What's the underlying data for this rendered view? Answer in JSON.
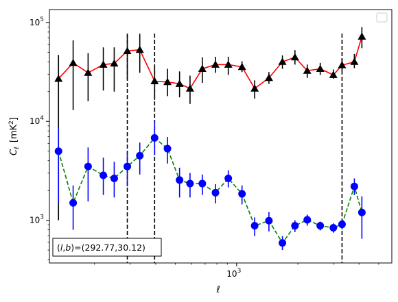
{
  "chart_data": {
    "type": "scatter",
    "title": "",
    "xlabel": "ℓ",
    "ylabel_main": "C",
    "ylabel_sub": "ℓ",
    "ylabel_unit_open": "[mK",
    "ylabel_unit_sup": "2",
    "ylabel_unit_close": "]",
    "xscale": "log",
    "yscale": "log",
    "xlim": [
      120,
      5800
    ],
    "ylim": [
      370,
      135000
    ],
    "x_ticks": [
      {
        "value": 1000,
        "base": "10",
        "exp": "3"
      }
    ],
    "y_ticks": [
      {
        "value": 1000,
        "base": "10",
        "exp": "3"
      },
      {
        "value": 10000,
        "base": "10",
        "exp": "4"
      },
      {
        "value": 100000,
        "base": "10",
        "exp": "5"
      }
    ],
    "legend": "top-right (empty)",
    "grid": false,
    "annotation": {
      "prefix": "(",
      "l": "l",
      "comma": ",",
      "b": "b",
      "suffix": ")=(292.77,30.12)"
    },
    "vlines": [
      290,
      395,
      3300
    ],
    "series": [
      {
        "color": "#ff0000",
        "line_style": "solid",
        "marker": "triangle",
        "marker_color": "#000000",
        "error_color": "#000000",
        "x": [
          133,
          157,
          186,
          221,
          250,
          290,
          334,
          395,
          457,
          524,
          590,
          678,
          787,
          910,
          1063,
          1227,
          1442,
          1680,
          1936,
          2225,
          2578,
          2991,
          3300,
          3794,
          4132
        ],
        "y": [
          27000,
          39000,
          31000,
          37500,
          38500,
          51500,
          53000,
          25500,
          25000,
          24000,
          21500,
          34000,
          37500,
          37500,
          35500,
          21500,
          27500,
          40000,
          44500,
          32500,
          34000,
          29500,
          37000,
          40000,
          72000
        ],
        "y_low": [
          1000,
          13000,
          16000,
          20500,
          20000,
          27000,
          31000,
          16500,
          18000,
          17500,
          15000,
          24500,
          31000,
          29500,
          31500,
          17000,
          24000,
          34000,
          37500,
          27500,
          29500,
          27000,
          32500,
          34500,
          55000
        ],
        "y_high": [
          47000,
          66000,
          49000,
          56000,
          56000,
          75000,
          77000,
          35000,
          34000,
          32000,
          29000,
          44500,
          45000,
          45000,
          40500,
          26000,
          31500,
          46500,
          52500,
          37500,
          39000,
          33500,
          43500,
          48000,
          90000
        ]
      },
      {
        "color": "#008000",
        "line_style": "dashed",
        "marker": "circle",
        "marker_color": "#0000ff",
        "error_color": "#0000ff",
        "x": [
          133,
          157,
          186,
          221,
          250,
          290,
          334,
          395,
          457,
          524,
          590,
          678,
          787,
          910,
          1063,
          1227,
          1442,
          1680,
          1936,
          2225,
          2578,
          2991,
          3300,
          3794,
          4132
        ],
        "y": [
          5000,
          1500,
          3500,
          2850,
          2650,
          3500,
          4500,
          6800,
          5300,
          2550,
          2350,
          2350,
          1900,
          2650,
          1850,
          880,
          990,
          590,
          880,
          1010,
          880,
          840,
          910,
          2200,
          1200
        ],
        "y_low": [
          1500,
          800,
          1550,
          1800,
          1700,
          2200,
          2900,
          4550,
          3750,
          1700,
          1700,
          1800,
          1480,
          2150,
          1450,
          690,
          770,
          500,
          760,
          880,
          790,
          750,
          810,
          1800,
          650
        ],
        "y_high": [
          8500,
          2250,
          5450,
          4300,
          3900,
          4900,
          6100,
          10100,
          6950,
          3400,
          3000,
          2900,
          2320,
          3200,
          2250,
          1070,
          1210,
          690,
          1000,
          1140,
          970,
          930,
          1010,
          2650,
          1750
        ]
      }
    ]
  }
}
